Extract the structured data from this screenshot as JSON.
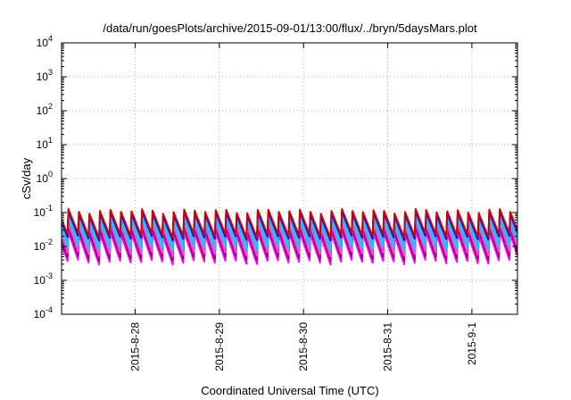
{
  "chart_data": {
    "type": "line",
    "title": "/data/run/goesPlots/archive/2015-09-01/13:00/flux/../bryn/5daysMars.plot",
    "xlabel": "Coordinated Universal Time (UTC)",
    "ylabel": "cSv/day",
    "yscale": "log",
    "ylim": [
      0.0001,
      10000
    ],
    "xlim": [
      "2015-08-27 03:00",
      "2015-09-01 13:00"
    ],
    "grid": true,
    "y_ticks": [
      {
        "base": "10",
        "exp": "4"
      },
      {
        "base": "10",
        "exp": "3"
      },
      {
        "base": "10",
        "exp": "2"
      },
      {
        "base": "10",
        "exp": "1"
      },
      {
        "base": "10",
        "exp": "0"
      },
      {
        "base": "10",
        "exp": "-1"
      },
      {
        "base": "10",
        "exp": "-2"
      },
      {
        "base": "10",
        "exp": "-3"
      },
      {
        "base": "10",
        "exp": "-4"
      }
    ],
    "x_ticks": [
      {
        "label": "2015-8-28",
        "date": "2015-08-28 00:00"
      },
      {
        "label": "2015-8-29",
        "date": "2015-08-29 00:00"
      },
      {
        "label": "2015-8-30",
        "date": "2015-08-30 00:00"
      },
      {
        "label": "2015-8-31",
        "date": "2015-08-31 00:00"
      },
      {
        "label": "2015-9-1",
        "date": "2015-09-01 00:00"
      }
    ],
    "cycle_hours": 3,
    "series": [
      {
        "color": "#ff00ff",
        "peak": 0.024,
        "trough": 0.0035
      },
      {
        "color": "#a0006e",
        "peak": 0.032,
        "trough": 0.0045
      },
      {
        "color": "#ff44ee",
        "peak": 0.045,
        "trough": 0.0062
      },
      {
        "color": "#00d2e6",
        "peak": 0.06,
        "trough": 0.009
      },
      {
        "color": "#5aa0ff",
        "peak": 0.078,
        "trough": 0.013
      },
      {
        "color": "#0000ff",
        "peak": 0.095,
        "trough": 0.018
      },
      {
        "color": "#cc0000",
        "peak": 0.11,
        "trough": 0.021
      }
    ]
  }
}
